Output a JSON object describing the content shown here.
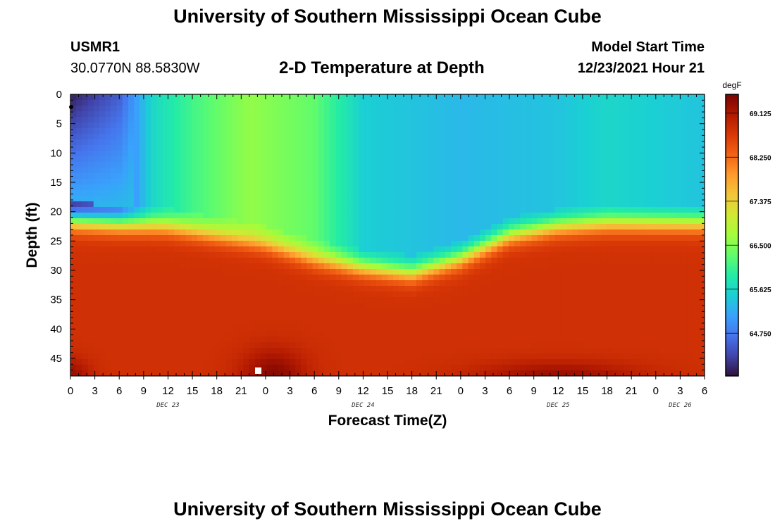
{
  "header": {
    "title": "University of Southern Mississippi Ocean Cube",
    "station": "USMR1",
    "coords": "30.0770N  88.5830W",
    "plot_title": "2-D Temperature at Depth",
    "model_start_label": "Model Start Time",
    "model_start_value": "12/23/2021 Hour 21"
  },
  "footer": {
    "title": "University of Southern Mississippi Ocean Cube"
  },
  "chart_data": {
    "type": "heatmap",
    "title": "2-D Temperature at Depth",
    "xlabel": "Forecast Time(Z)",
    "ylabel": "Depth (ft)",
    "x_tick_labels": [
      "0",
      "3",
      "6",
      "9",
      "12",
      "15",
      "18",
      "21",
      "0",
      "3",
      "6",
      "9",
      "12",
      "15",
      "18",
      "21",
      "0",
      "3",
      "6",
      "9",
      "12",
      "15",
      "18",
      "21",
      "0",
      "3",
      "6"
    ],
    "x_range_hours": [
      0,
      78
    ],
    "date_labels": [
      {
        "text": "DEC 23",
        "hour": 12
      },
      {
        "text": "DEC 24",
        "hour": 36
      },
      {
        "text": "DEC 25",
        "hour": 60
      },
      {
        "text": "DEC 26",
        "hour": 75
      }
    ],
    "y_ticks": [
      0,
      5,
      10,
      15,
      20,
      25,
      30,
      35,
      40,
      45
    ],
    "y_range": [
      0,
      48
    ],
    "y_inverted": true,
    "colorbar": {
      "unit": "degF",
      "labels": [
        "69.125",
        "68.250",
        "67.375",
        "66.500",
        "65.625",
        "64.750"
      ],
      "min": 63.9,
      "max": 69.5,
      "colors": [
        "#30123b",
        "#4145ab",
        "#4675ed",
        "#39a2fc",
        "#1bcfd4",
        "#24eca6",
        "#61fc6c",
        "#a4fc3b",
        "#d1e834",
        "#f3c63a",
        "#fe9b2d",
        "#f36315",
        "#d93806",
        "#b11901",
        "#7a0402"
      ]
    },
    "thermocline_depth_ft": [
      {
        "hour": 0,
        "depth": 21.5
      },
      {
        "hour": 12,
        "depth": 22.5
      },
      {
        "hour": 18,
        "depth": 24
      },
      {
        "hour": 24,
        "depth": 25.5
      },
      {
        "hour": 30,
        "depth": 28
      },
      {
        "hour": 36,
        "depth": 29.5
      },
      {
        "hour": 42,
        "depth": 30.5
      },
      {
        "hour": 48,
        "depth": 28
      },
      {
        "hour": 54,
        "depth": 24
      },
      {
        "hour": 60,
        "depth": 22.5
      },
      {
        "hour": 66,
        "depth": 22
      },
      {
        "hour": 72,
        "depth": 22
      },
      {
        "hour": 78,
        "depth": 22
      }
    ],
    "surface_temperature_degF": [
      {
        "hour": 0,
        "value": 64.0
      },
      {
        "hour": 6,
        "value": 64.5
      },
      {
        "hour": 10,
        "value": 65.6
      },
      {
        "hour": 15,
        "value": 66.1
      },
      {
        "hour": 22,
        "value": 66.6
      },
      {
        "hour": 30,
        "value": 66.3
      },
      {
        "hour": 36,
        "value": 65.5
      },
      {
        "hour": 48,
        "value": 65.3
      },
      {
        "hour": 60,
        "value": 65.4
      },
      {
        "hour": 66,
        "value": 65.6
      },
      {
        "hour": 78,
        "value": 65.4
      }
    ],
    "bottom_temperature_degF": {
      "typical": 68.8,
      "maximum": 69.4
    }
  }
}
